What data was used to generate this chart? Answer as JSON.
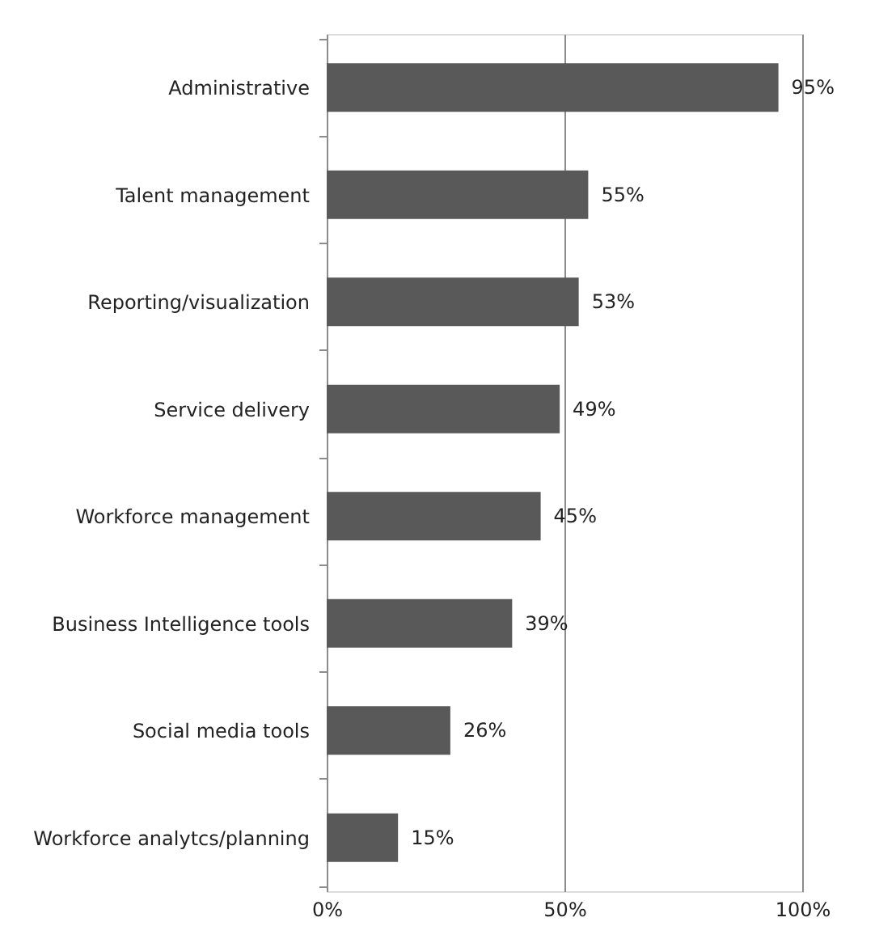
{
  "chart_data": {
    "type": "bar",
    "orientation": "horizontal",
    "categories": [
      "Administrative",
      "Talent management",
      "Reporting/visualization",
      "Service delivery",
      "Workforce management",
      "Business Intelligence tools",
      "Social media tools",
      "Workforce analytcs/planning"
    ],
    "values": [
      95,
      55,
      53,
      49,
      45,
      39,
      26,
      15
    ],
    "value_labels": [
      "95%",
      "55%",
      "53%",
      "49%",
      "45%",
      "39%",
      "26%",
      "15%"
    ],
    "color": "#595959",
    "xlim": [
      0,
      100
    ],
    "xticks": [
      {
        "value": 0,
        "label": "0%"
      },
      {
        "value": 50,
        "label": "50%"
      },
      {
        "value": 100,
        "label": "100%"
      }
    ],
    "grid": "x"
  }
}
